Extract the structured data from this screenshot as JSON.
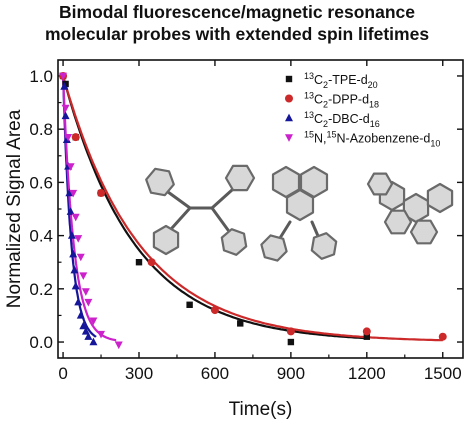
{
  "title_line1": "Bimodal fluorescence/magnetic resonance",
  "title_line2": "molecular probes with extended spin lifetimes",
  "chart_data": {
    "type": "scatter",
    "xlabel": "Time(s)",
    "ylabel": "Normalized Signal Area",
    "xlim": [
      -20,
      1580
    ],
    "ylim": [
      -0.06,
      1.06
    ],
    "xticks": [
      "0",
      "300",
      "600",
      "900",
      "1200",
      "1500"
    ],
    "yticks": [
      "0.0",
      "0.2",
      "0.4",
      "0.6",
      "0.8",
      "1.0"
    ],
    "grid": false,
    "legend_position": "top-right",
    "series": [
      {
        "name": "13C2-TPE-d20",
        "legend_parts": [
          [
            "sup",
            "13"
          ],
          [
            "base",
            "C"
          ],
          [
            "sub",
            "2"
          ],
          [
            "base",
            "-TPE-d"
          ],
          [
            "sub",
            "20"
          ]
        ],
        "marker": "square",
        "color": "#111111",
        "x": [
          0,
          10,
          50,
          150,
          300,
          500,
          700,
          900,
          1200
        ],
        "y": [
          1.0,
          0.97,
          0.77,
          0.56,
          0.3,
          0.14,
          0.07,
          0.0,
          0.02
        ],
        "fit": {
          "tau": 283,
          "tmax": 1210,
          "color": "#111111"
        }
      },
      {
        "name": "13C2-DPP-d18",
        "legend_parts": [
          [
            "sup",
            "13"
          ],
          [
            "base",
            "C"
          ],
          [
            "sub",
            "2"
          ],
          [
            "base",
            "-DPP-d"
          ],
          [
            "sub",
            "18"
          ]
        ],
        "marker": "circle",
        "color": "#cc2a2a",
        "x": [
          0,
          50,
          150,
          350,
          600,
          900,
          1200,
          1500
        ],
        "y": [
          1.0,
          0.77,
          0.56,
          0.3,
          0.12,
          0.04,
          0.04,
          0.02
        ],
        "fit": {
          "tau": 300,
          "tmax": 1500,
          "color": "#cc2a2a"
        }
      },
      {
        "name": "13C2-DBC-d16",
        "legend_parts": [
          [
            "sup",
            "13"
          ],
          [
            "base",
            "C"
          ],
          [
            "sub",
            "2"
          ],
          [
            "base",
            "-DBC-d"
          ],
          [
            "sub",
            "16"
          ]
        ],
        "marker": "triangle-up",
        "color": "#16169a",
        "x": [
          5,
          10,
          15,
          20,
          25,
          30,
          35,
          40,
          45,
          50,
          60,
          70,
          80,
          90,
          100,
          120
        ],
        "y": [
          0.96,
          0.85,
          0.76,
          0.66,
          0.56,
          0.49,
          0.4,
          0.33,
          0.27,
          0.21,
          0.15,
          0.1,
          0.06,
          0.04,
          0.02,
          0.0
        ],
        "fit": {
          "tau": 33,
          "tmax": 130,
          "color": "#16169a"
        }
      },
      {
        "name": "15N,15N-Azobenzene-d10",
        "legend_parts": [
          [
            "sup",
            "15"
          ],
          [
            "base",
            "N,"
          ],
          [
            "sup",
            "15"
          ],
          [
            "base",
            "N-Azobenzene-d"
          ],
          [
            "sub",
            "10"
          ]
        ],
        "marker": "triangle-down",
        "color": "#cc22cc",
        "x": [
          0,
          10,
          20,
          30,
          40,
          50,
          60,
          70,
          80,
          90,
          100,
          120,
          150,
          220
        ],
        "y": [
          1.0,
          0.88,
          0.77,
          0.66,
          0.56,
          0.47,
          0.39,
          0.32,
          0.25,
          0.19,
          0.15,
          0.08,
          0.03,
          -0.01
        ],
        "fit": {
          "tau": 42,
          "tmax": 210,
          "color": "#cc22cc"
        }
      }
    ]
  }
}
